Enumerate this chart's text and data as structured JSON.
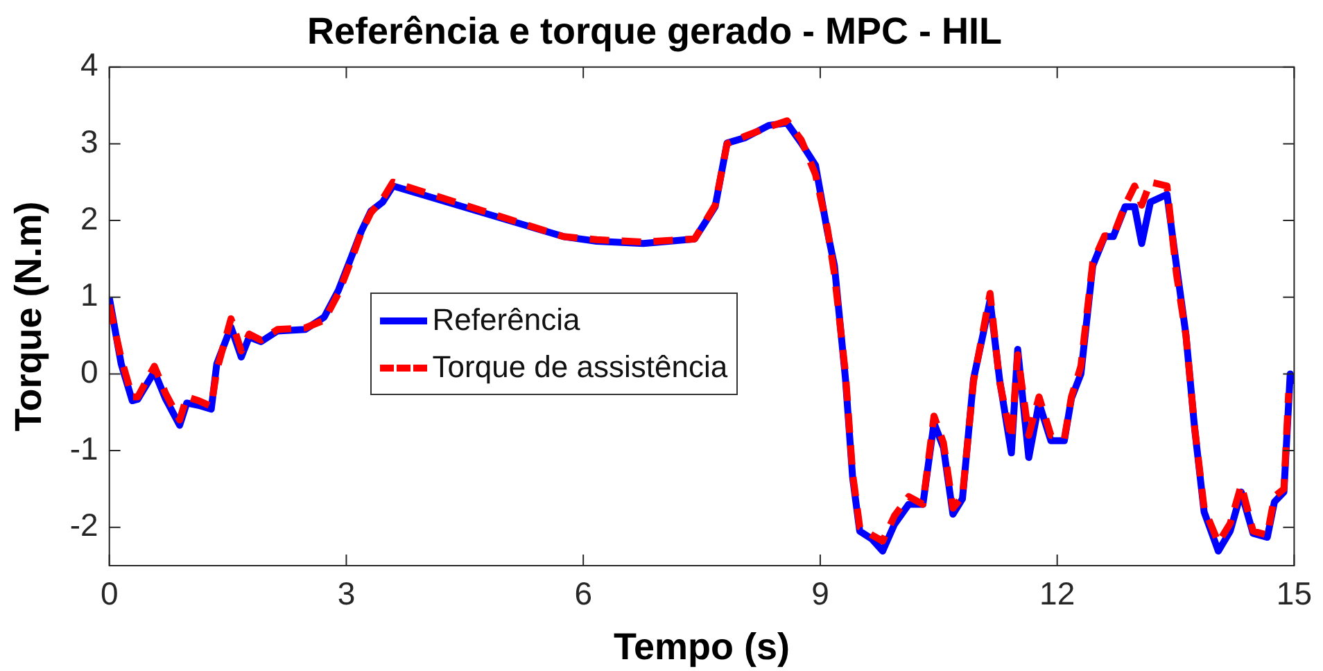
{
  "chart_data": {
    "type": "line",
    "title": "Referência e torque gerado - MPC - HIL",
    "xlabel": "Tempo (s)",
    "ylabel": "Torque (N.m)",
    "xlim": [
      0,
      15
    ],
    "xticks": [
      0,
      3,
      6,
      9,
      12,
      15
    ],
    "ylim": [
      -2.5,
      4
    ],
    "yticks": [
      -2,
      -1,
      0,
      1,
      2,
      3,
      4
    ],
    "grid": false,
    "legend": "center left",
    "marker": "none",
    "series": [
      {
        "name": "Referência",
        "color": "#0000ff",
        "line_style": "solid",
        "x": [
          0,
          0.15,
          0.29,
          0.36,
          0.57,
          0.71,
          0.89,
          0.98,
          1.13,
          1.29,
          1.36,
          1.54,
          1.67,
          1.77,
          1.92,
          2.13,
          2.48,
          2.72,
          2.9,
          3.07,
          3.19,
          3.31,
          3.46,
          3.59,
          5.75,
          6.17,
          6.76,
          7.41,
          7.67,
          7.82,
          8.05,
          8.35,
          8.58,
          8.76,
          8.94,
          9.09,
          9.18,
          9.32,
          9.41,
          9.5,
          9.65,
          9.79,
          9.94,
          10.12,
          10.3,
          10.44,
          10.56,
          10.68,
          10.8,
          10.94,
          11.06,
          11.15,
          11.27,
          11.42,
          11.5,
          11.64,
          11.77,
          11.92,
          12.09,
          12.18,
          12.3,
          12.45,
          12.6,
          12.71,
          12.86,
          12.98,
          13.07,
          13.18,
          13.39,
          13.51,
          13.63,
          13.74,
          13.86,
          14.04,
          14.19,
          14.33,
          14.48,
          14.66,
          14.75,
          14.87,
          14.95,
          15
        ],
        "values": [
          0.99,
          0.13,
          -0.35,
          -0.33,
          0.03,
          -0.32,
          -0.67,
          -0.38,
          -0.41,
          -0.46,
          0.13,
          0.61,
          0.22,
          0.48,
          0.42,
          0.56,
          0.58,
          0.74,
          1.09,
          1.54,
          1.86,
          2.12,
          2.24,
          2.45,
          1.79,
          1.73,
          1.7,
          1.76,
          2.18,
          3.01,
          3.08,
          3.24,
          3.27,
          3.01,
          2.72,
          1.86,
          1.41,
          -0.07,
          -1.35,
          -2.05,
          -2.15,
          -2.31,
          -1.96,
          -1.7,
          -1.7,
          -0.64,
          -0.96,
          -1.83,
          -1.63,
          -0.07,
          0.51,
          0.96,
          -0.07,
          -1.03,
          0.32,
          -1.09,
          -0.38,
          -0.87,
          -0.87,
          -0.32,
          0,
          1.41,
          1.79,
          1.79,
          2.18,
          2.18,
          1.7,
          2.24,
          2.34,
          1.41,
          0.51,
          -0.71,
          -1.8,
          -2.31,
          -2.05,
          -1.54,
          -2.08,
          -2.13,
          -1.67,
          -1.54,
          0,
          -0.13
        ]
      },
      {
        "name": "Torque de assistência",
        "color": "#ff0000",
        "line_style": "dashed",
        "x": [
          0,
          0.15,
          0.29,
          0.36,
          0.57,
          0.71,
          0.89,
          0.98,
          1.13,
          1.29,
          1.36,
          1.54,
          1.67,
          1.77,
          1.92,
          2.13,
          2.48,
          2.72,
          2.9,
          3.07,
          3.19,
          3.31,
          3.46,
          3.59,
          5.75,
          6.17,
          6.76,
          7.41,
          7.67,
          7.82,
          8.05,
          8.35,
          8.58,
          8.76,
          8.94,
          9.09,
          9.18,
          9.32,
          9.41,
          9.5,
          9.65,
          9.79,
          9.94,
          10.12,
          10.3,
          10.44,
          10.56,
          10.68,
          10.8,
          10.94,
          11.06,
          11.15,
          11.27,
          11.42,
          11.5,
          11.64,
          11.77,
          11.92,
          12.09,
          12.18,
          12.3,
          12.45,
          12.6,
          12.71,
          12.86,
          12.98,
          13.07,
          13.18,
          13.39,
          13.51,
          13.63,
          13.74,
          13.86,
          14.04,
          14.19,
          14.33,
          14.48,
          14.66,
          14.75,
          14.87,
          14.93
        ],
        "values": [
          0.9,
          0.2,
          -0.3,
          -0.3,
          0.1,
          -0.25,
          -0.6,
          -0.3,
          -0.35,
          -0.42,
          0.05,
          0.72,
          0.3,
          0.52,
          0.44,
          0.58,
          0.6,
          0.7,
          1.05,
          1.5,
          1.85,
          2.1,
          2.28,
          2.5,
          1.79,
          1.75,
          1.72,
          1.76,
          2.2,
          3.0,
          3.1,
          3.22,
          3.3,
          3.05,
          2.6,
          1.9,
          1.3,
          0,
          -1.3,
          -2.0,
          -2.1,
          -2.18,
          -1.85,
          -1.6,
          -1.7,
          -0.55,
          -0.9,
          -1.75,
          -1.6,
          -0.1,
          0.55,
          1.05,
          -0.1,
          -0.85,
          0.25,
          -0.8,
          -0.3,
          -0.8,
          -0.85,
          -0.3,
          0.1,
          1.45,
          1.8,
          1.8,
          2.2,
          2.45,
          2.2,
          2.5,
          2.45,
          1.3,
          0.5,
          -0.7,
          -1.75,
          -2.2,
          -1.95,
          -1.45,
          -2.05,
          -2.1,
          -1.6,
          -1.5,
          -0.25
        ]
      }
    ]
  }
}
